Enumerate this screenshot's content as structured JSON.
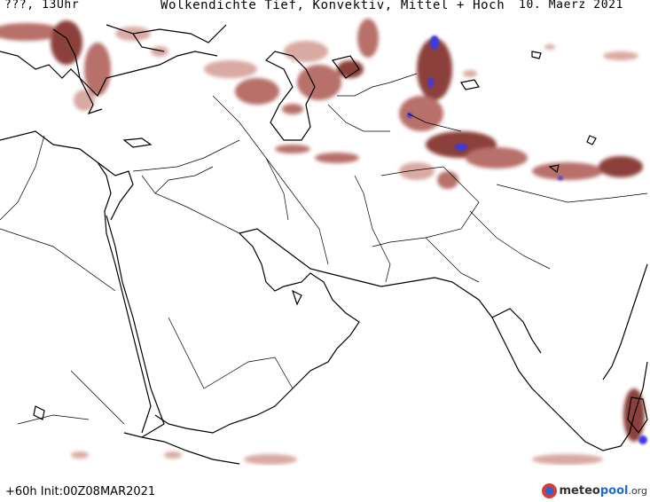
{
  "header": {
    "left": "???, 13Uhr",
    "center": "Wolkendichte  Tief, Konvektiv, Mittel + Hoch",
    "right": "10. Maerz 2021"
  },
  "footer": {
    "run": "+60h Init:00Z08MAR2021",
    "logo_part1": "meteo",
    "logo_part2": "pool",
    "logo_part3": ".org"
  },
  "colors": {
    "cloud_light": "#d9a9a3",
    "cloud_mid": "#b8706a",
    "cloud_dark": "#8c3f3b",
    "cloud_intense": "#3a3ae0",
    "coastline": "#000000",
    "borders": "#000000",
    "background": "#ffffff"
  }
}
